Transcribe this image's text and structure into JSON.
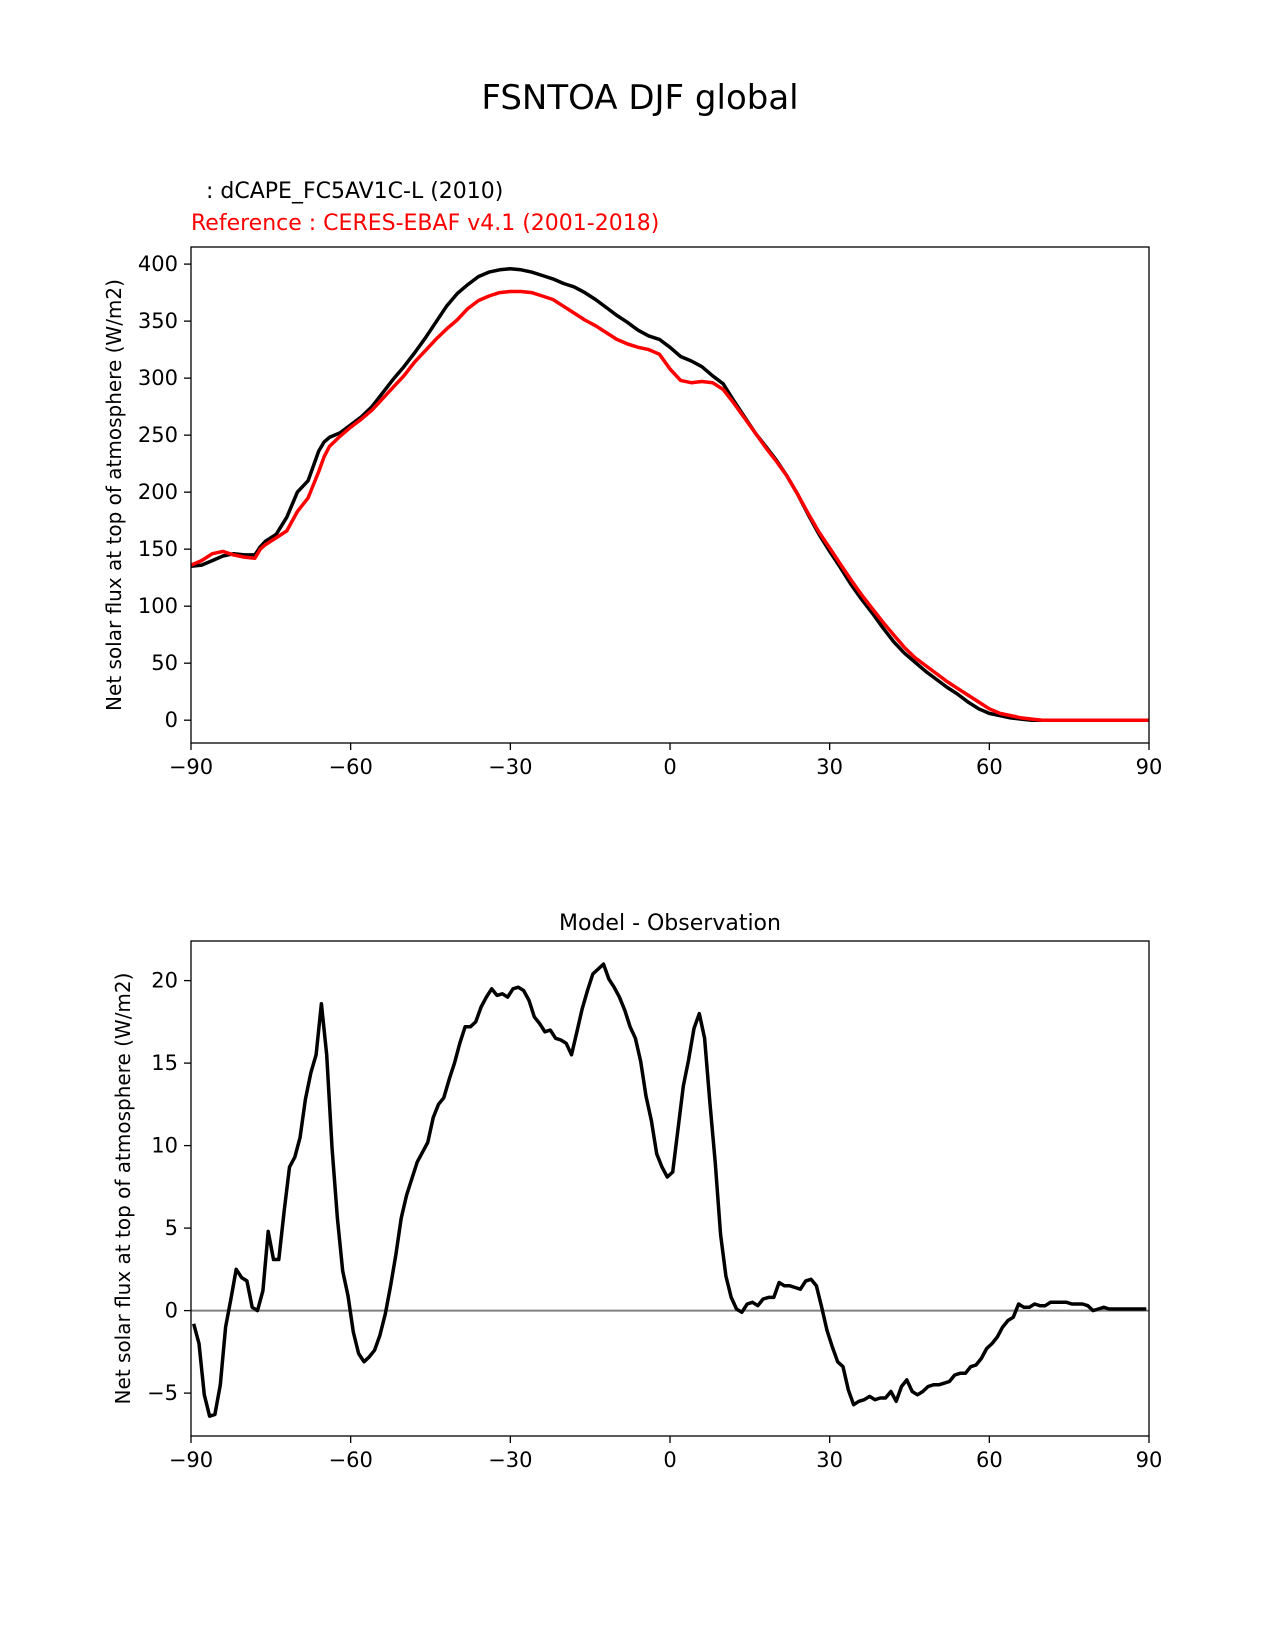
{
  "figure": {
    "title": "FSNTOA DJF global",
    "colors": {
      "model": "#000000",
      "reference": "#ff0000",
      "zero_line": "#808080",
      "axes": "#000000"
    }
  },
  "chart_data": [
    {
      "type": "line",
      "title": "",
      "test_label": ": dCAPE_FC5AV1C-L (2010)",
      "reference_label": "Reference : CERES-EBAF v4.1 (2001-2018)",
      "xlabel": "",
      "ylabel": "Net solar flux at top of atmosphere (W/m2)",
      "xlim": [
        -90,
        90
      ],
      "ylim": [
        -20,
        415
      ],
      "xticks": [
        -90,
        -60,
        -30,
        0,
        30,
        60,
        90
      ],
      "xtick_labels": [
        "−90",
        "−60",
        "−30",
        "0",
        "30",
        "60",
        "90"
      ],
      "yticks": [
        0,
        50,
        100,
        150,
        200,
        250,
        300,
        350,
        400
      ],
      "ytick_labels": [
        "0",
        "50",
        "100",
        "150",
        "200",
        "250",
        "300",
        "350",
        "400"
      ],
      "series": [
        {
          "color": "#000000",
          "x": [
            -90,
            -88,
            -86,
            -84,
            -82,
            -80,
            -78,
            -77,
            -76,
            -74,
            -72,
            -70,
            -68,
            -66,
            -65,
            -64,
            -62,
            -60,
            -58,
            -56,
            -54,
            -52,
            -50,
            -48,
            -46,
            -44,
            -42,
            -40,
            -38,
            -36,
            -34,
            -32,
            -30,
            -28,
            -26,
            -24,
            -22,
            -20,
            -18,
            -16,
            -14,
            -12,
            -10,
            -8,
            -6,
            -4,
            -2,
            0,
            2,
            4,
            6,
            8,
            10,
            12,
            14,
            16,
            18,
            20,
            22,
            24,
            26,
            28,
            30,
            32,
            34,
            36,
            38,
            40,
            42,
            44,
            46,
            48,
            50,
            52,
            54,
            56,
            58,
            60,
            62,
            64,
            66,
            68,
            70,
            74,
            78,
            82,
            86,
            90
          ],
          "y": [
            135,
            136,
            140,
            144,
            146,
            145,
            145,
            152,
            157,
            163,
            178,
            200,
            210,
            236,
            244,
            248,
            252,
            259,
            266,
            275,
            287,
            299,
            310,
            322,
            335,
            349,
            363,
            374,
            382,
            389,
            393,
            395,
            396,
            395,
            393,
            390,
            387,
            383,
            380,
            375,
            369,
            362,
            355,
            349,
            342,
            337,
            334,
            327,
            319,
            315,
            310,
            302,
            295,
            280,
            266,
            252,
            240,
            228,
            214,
            198,
            180,
            163,
            148,
            134,
            119,
            106,
            94,
            81,
            69,
            59,
            51,
            43,
            36,
            29,
            23,
            16,
            10,
            6,
            4,
            2,
            1,
            0,
            0,
            0,
            0,
            0,
            0,
            0
          ]
        },
        {
          "color": "#ff0000",
          "x": [
            -90,
            -88,
            -86,
            -84,
            -82,
            -80,
            -78,
            -77,
            -76,
            -74,
            -72,
            -70,
            -68,
            -66,
            -65,
            -64,
            -62,
            -60,
            -58,
            -56,
            -54,
            -52,
            -50,
            -48,
            -46,
            -44,
            -42,
            -40,
            -38,
            -36,
            -34,
            -32,
            -30,
            -28,
            -26,
            -24,
            -22,
            -20,
            -18,
            -16,
            -14,
            -12,
            -10,
            -8,
            -6,
            -4,
            -2,
            0,
            2,
            4,
            6,
            8,
            10,
            12,
            14,
            16,
            18,
            20,
            22,
            24,
            26,
            28,
            30,
            32,
            34,
            36,
            38,
            40,
            42,
            44,
            46,
            48,
            50,
            52,
            54,
            56,
            58,
            60,
            62,
            64,
            66,
            68,
            70,
            74,
            78,
            82,
            86,
            90
          ],
          "y": [
            136,
            140,
            146,
            148,
            145,
            143,
            142,
            150,
            154,
            160,
            166,
            183,
            195,
            218,
            231,
            240,
            249,
            257,
            264,
            272,
            282,
            292,
            302,
            314,
            324,
            334,
            343,
            351,
            361,
            368,
            372,
            375,
            376,
            376,
            375,
            372,
            369,
            363,
            357,
            351,
            346,
            340,
            334,
            330,
            327,
            325,
            321,
            308,
            298,
            296,
            297,
            296,
            290,
            278,
            265,
            252,
            239,
            227,
            214,
            198,
            181,
            165,
            151,
            137,
            123,
            110,
            98,
            86,
            75,
            64,
            55,
            48,
            41,
            34,
            28,
            22,
            16,
            10,
            6,
            4,
            2,
            1,
            0,
            0,
            0,
            0,
            0,
            0
          ]
        }
      ]
    },
    {
      "type": "line",
      "title": "Model - Observation",
      "xlabel": "",
      "ylabel": "Net solar flux at top of atmosphere (W/m2)",
      "xlim": [
        -90,
        90
      ],
      "ylim": [
        -7.6,
        22.4
      ],
      "xticks": [
        -90,
        -60,
        -30,
        0,
        30,
        60,
        90
      ],
      "xtick_labels": [
        "−90",
        "−60",
        "−30",
        "0",
        "30",
        "60",
        "90"
      ],
      "yticks": [
        -5,
        0,
        5,
        10,
        15,
        20
      ],
      "ytick_labels": [
        "−5",
        "0",
        "5",
        "10",
        "15",
        "20"
      ],
      "zero_line": 0,
      "series": [
        {
          "color": "#000000",
          "x": [
            -89.5,
            -88.5,
            -87.5,
            -86.5,
            -85.5,
            -84.5,
            -83.5,
            -82.5,
            -81.5,
            -80.5,
            -79.5,
            -78.5,
            -77.5,
            -76.5,
            -75.5,
            -74.5,
            -73.5,
            -72.5,
            -71.5,
            -70.5,
            -69.5,
            -68.5,
            -67.5,
            -66.5,
            -65.5,
            -64.5,
            -63.5,
            -62.5,
            -61.5,
            -60.5,
            -59.5,
            -58.5,
            -57.5,
            -56.5,
            -55.5,
            -54.5,
            -53.5,
            -52.5,
            -51.5,
            -50.5,
            -49.5,
            -48.5,
            -47.5,
            -46.5,
            -45.5,
            -44.5,
            -43.5,
            -42.5,
            -41.5,
            -40.5,
            -39.5,
            -38.5,
            -37.5,
            -36.5,
            -35.5,
            -34.5,
            -33.5,
            -32.5,
            -31.5,
            -30.5,
            -29.5,
            -28.5,
            -27.5,
            -26.5,
            -25.5,
            -24.5,
            -23.5,
            -22.5,
            -21.5,
            -20.5,
            -19.5,
            -18.5,
            -17.5,
            -16.5,
            -15.5,
            -14.5,
            -13.5,
            -12.5,
            -11.5,
            -10.5,
            -9.5,
            -8.5,
            -7.5,
            -6.5,
            -5.5,
            -4.5,
            -3.5,
            -2.5,
            -1.5,
            -0.5,
            0.5,
            1.5,
            2.5,
            3.5,
            4.5,
            5.5,
            6.5,
            7.5,
            8.5,
            9.5,
            10.5,
            11.5,
            12.5,
            13.5,
            14.5,
            15.5,
            16.5,
            17.5,
            18.5,
            19.5,
            20.5,
            21.5,
            22.5,
            23.5,
            24.5,
            25.5,
            26.5,
            27.5,
            28.5,
            29.5,
            30.5,
            31.5,
            32.5,
            33.5,
            34.5,
            35.5,
            36.5,
            37.5,
            38.5,
            39.5,
            40.5,
            41.5,
            42.5,
            43.5,
            44.5,
            45.5,
            46.5,
            47.5,
            48.5,
            49.5,
            50.5,
            51.5,
            52.5,
            53.5,
            54.5,
            55.5,
            56.5,
            57.5,
            58.5,
            59.5,
            60.5,
            61.5,
            62.5,
            63.5,
            64.5,
            65.5,
            66.5,
            67.5,
            68.5,
            69.5,
            70.5,
            71.5,
            72.5,
            73.5,
            74.5,
            75.5,
            76.5,
            77.5,
            78.5,
            79.5,
            80.5,
            81.5,
            82.5,
            83.5,
            84.5,
            85.5,
            86.5,
            87.5,
            88.5,
            89.5
          ],
          "y": [
            -0.8,
            -2.0,
            -5.1,
            -6.4,
            -6.3,
            -4.5,
            -1.0,
            0.7,
            2.5,
            2.0,
            1.8,
            0.2,
            0.0,
            1.2,
            4.8,
            3.1,
            3.1,
            6.0,
            8.7,
            9.3,
            10.5,
            12.8,
            14.4,
            15.5,
            18.6,
            15.5,
            9.9,
            5.6,
            2.4,
            0.9,
            -1.3,
            -2.6,
            -3.1,
            -2.8,
            -2.4,
            -1.5,
            -0.2,
            1.5,
            3.4,
            5.6,
            7.0,
            8.0,
            9.0,
            9.6,
            10.2,
            11.7,
            12.5,
            12.9,
            14.0,
            15.0,
            16.2,
            17.2,
            17.2,
            17.5,
            18.4,
            19.0,
            19.5,
            19.1,
            19.2,
            19.0,
            19.5,
            19.6,
            19.4,
            18.8,
            17.8,
            17.4,
            16.9,
            17.0,
            16.5,
            16.4,
            16.2,
            15.5,
            16.9,
            18.3,
            19.4,
            20.4,
            20.7,
            21.0,
            20.1,
            19.6,
            19.0,
            18.2,
            17.2,
            16.5,
            15.1,
            13.0,
            11.5,
            9.5,
            8.7,
            8.1,
            8.4,
            11.0,
            13.6,
            15.2,
            17.1,
            18.0,
            16.5,
            12.6,
            9.0,
            4.6,
            2.1,
            0.8,
            0.1,
            -0.1,
            0.4,
            0.5,
            0.3,
            0.7,
            0.8,
            0.8,
            1.7,
            1.5,
            1.5,
            1.4,
            1.3,
            1.8,
            1.9,
            1.5,
            0.2,
            -1.2,
            -2.2,
            -3.1,
            -3.4,
            -4.8,
            -5.7,
            -5.5,
            -5.4,
            -5.2,
            -5.4,
            -5.3,
            -5.3,
            -4.9,
            -5.5,
            -4.6,
            -4.2,
            -4.9,
            -5.1,
            -4.9,
            -4.6,
            -4.5,
            -4.5,
            -4.4,
            -4.3,
            -3.9,
            -3.8,
            -3.8,
            -3.4,
            -3.3,
            -2.9,
            -2.3,
            -2.0,
            -1.6,
            -1.0,
            -0.6,
            -0.4,
            0.4,
            0.2,
            0.2,
            0.4,
            0.3,
            0.3,
            0.5,
            0.5,
            0.5,
            0.5,
            0.4,
            0.4,
            0.4,
            0.3,
            0.0,
            0.1,
            0.2,
            0.1,
            0.1,
            0.1,
            0.1,
            0.1,
            0.1,
            0.1,
            0.1
          ]
        }
      ]
    }
  ]
}
